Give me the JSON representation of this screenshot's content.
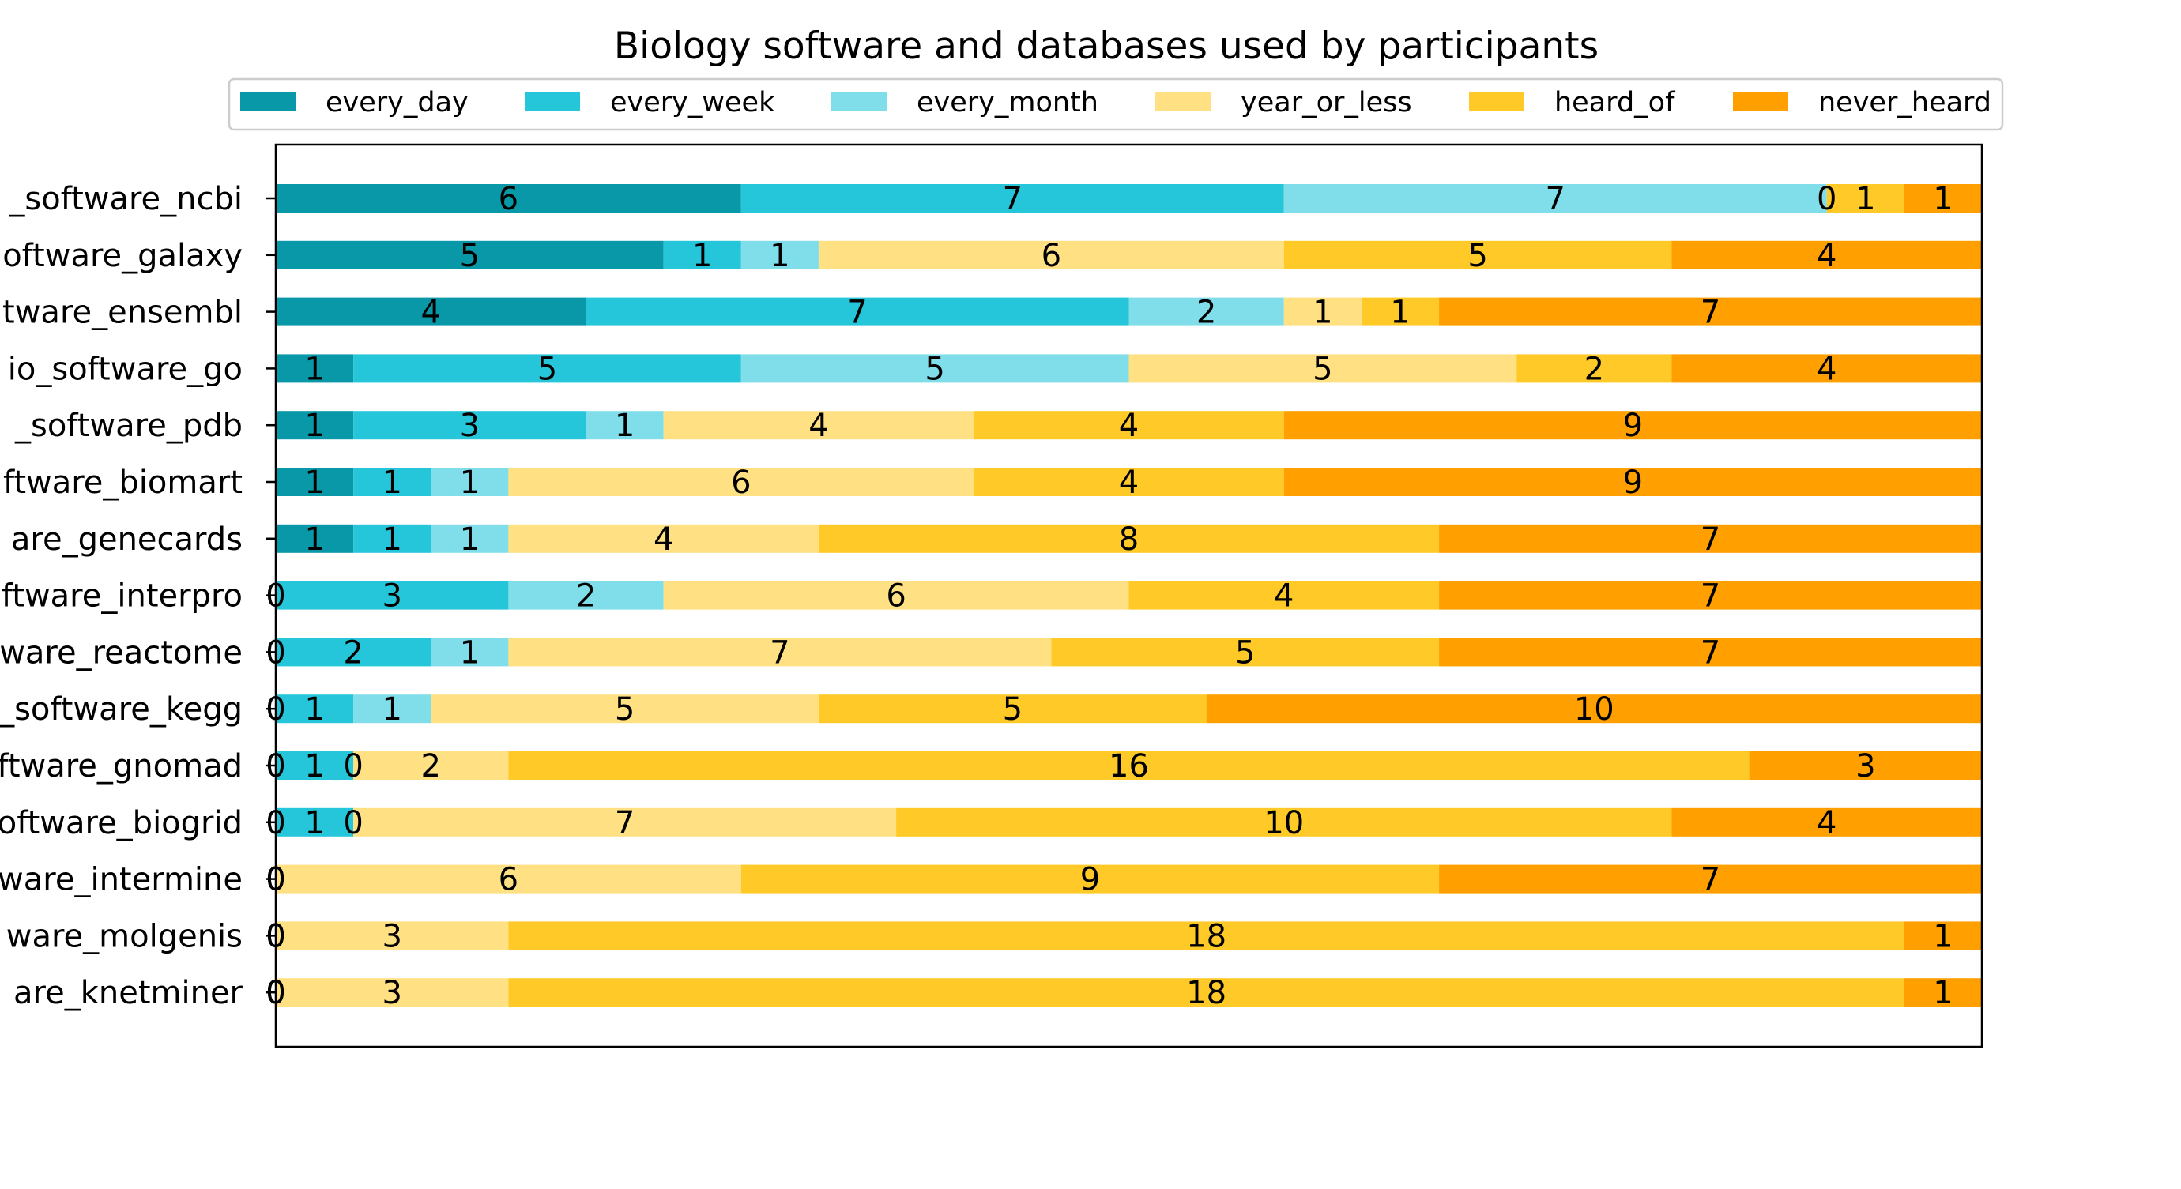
{
  "chart_data": {
    "type": "bar",
    "orientation": "horizontal",
    "stacked": true,
    "title": "Biology software and databases used by participants",
    "xlabel": "",
    "ylabel": "",
    "xlim": [
      0,
      22
    ],
    "grid": false,
    "legend_position": "top",
    "categories": [
      "_software_ncbi",
      "oftware_galaxy",
      "tware_ensembl",
      "io_software_go",
      "_software_pdb",
      "ftware_biomart",
      "are_genecards",
      "ftware_interpro",
      "ware_reactome",
      "_software_kegg",
      "ftware_gnomad",
      "oftware_biogrid",
      "ware_intermine",
      "ware_molgenis",
      "are_knetminer"
    ],
    "series": [
      {
        "name": "every_day",
        "color": "#0898A8",
        "values": [
          6,
          5,
          4,
          1,
          1,
          1,
          1,
          0,
          0,
          0,
          0,
          0,
          0,
          0,
          0
        ]
      },
      {
        "name": "every_week",
        "color": "#26C6DA",
        "values": [
          7,
          1,
          7,
          5,
          3,
          1,
          1,
          3,
          2,
          1,
          1,
          1,
          0,
          0,
          0
        ]
      },
      {
        "name": "every_month",
        "color": "#80DEEA",
        "values": [
          7,
          1,
          2,
          5,
          1,
          1,
          1,
          2,
          1,
          1,
          0,
          0,
          0,
          0,
          0
        ]
      },
      {
        "name": "year_or_less",
        "color": "#FFE082",
        "values": [
          0,
          6,
          1,
          5,
          4,
          6,
          4,
          6,
          7,
          5,
          2,
          7,
          6,
          3,
          3
        ]
      },
      {
        "name": "heard_of",
        "color": "#FFCA28",
        "values": [
          1,
          5,
          1,
          2,
          4,
          4,
          8,
          4,
          5,
          5,
          16,
          10,
          9,
          18,
          18
        ]
      },
      {
        "name": "never_heard",
        "color": "#FFA000",
        "values": [
          1,
          4,
          7,
          4,
          9,
          9,
          7,
          7,
          7,
          10,
          3,
          4,
          7,
          1,
          1
        ]
      }
    ]
  }
}
